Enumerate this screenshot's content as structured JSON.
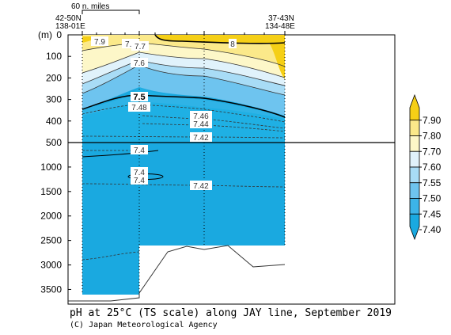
{
  "caption": {
    "title": "pH at 25°C (TS scale) along JAY line, September 2019",
    "credit": "(C) Japan Meteorological Agency"
  },
  "chart_data": {
    "type": "heatmap",
    "variable": "pH at 25°C (TS scale)",
    "y_unit_label": "(m)",
    "y_ticks_upper": [
      0,
      100,
      200,
      300,
      400,
      500
    ],
    "y_ticks_lower": [
      1000,
      1500,
      2000,
      2500,
      3000,
      3500
    ],
    "y_range_upper": [
      0,
      500
    ],
    "y_range_lower": [
      500,
      3800
    ],
    "scale_bar_label": "60 n. miles",
    "section_ends": {
      "left": {
        "lat": "42-50N",
        "lon": "138-01E"
      },
      "right": {
        "lat": "37-43N",
        "lon": "134-48E"
      }
    },
    "colorbar": {
      "levels": [
        "7.40",
        "7.45",
        "7.50",
        "7.55",
        "7.60",
        "7.70",
        "7.80",
        "7.90"
      ],
      "colors": [
        "#1aa9e0",
        "#3cb4e8",
        "#6ec4ef",
        "#a8dcf6",
        "#e0f2fb",
        "#fdf7c8",
        "#fbe98a",
        "#f5cf16"
      ]
    },
    "contour_labels": [
      "7.9",
      "7.8",
      "7.7",
      "7.6",
      "8",
      "7.5",
      "7.48",
      "7.46",
      "7.44",
      "7.42",
      "7.4",
      "7.4",
      "7.4",
      "7.4",
      "7.42"
    ],
    "bottom_depth_m": [
      3780,
      3780,
      3720,
      3720,
      2900,
      2600,
      2620,
      2580,
      3000,
      2980
    ]
  }
}
